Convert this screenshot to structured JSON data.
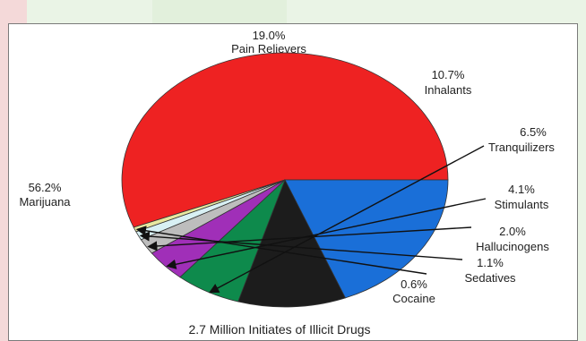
{
  "chart_data": {
    "type": "pie",
    "title": "2.7 Million Initiates of Illicit Drugs",
    "slices": [
      {
        "label": "Marijuana",
        "value": 56.2,
        "value_label": "56.2%",
        "color": "#ee2222"
      },
      {
        "label": "Pain Relievers",
        "value": 19.0,
        "value_label": "19.0%",
        "color": "#1a6fd8"
      },
      {
        "label": "Inhalants",
        "value": 10.7,
        "value_label": "10.7%",
        "color": "#1c1c1c"
      },
      {
        "label": "Tranquilizers",
        "value": 6.5,
        "value_label": "6.5%",
        "color": "#0e8a4c"
      },
      {
        "label": "Stimulants",
        "value": 4.1,
        "value_label": "4.1%",
        "color": "#a02fb8"
      },
      {
        "label": "Hallucinogens",
        "value": 2.0,
        "value_label": "2.0%",
        "color": "#bdbdbd"
      },
      {
        "label": "Sedatives",
        "value": 1.1,
        "value_label": "1.1%",
        "color": "#d8f0f4"
      },
      {
        "label": "Cocaine",
        "value": 0.6,
        "value_label": "0.6%",
        "color": "#e8e8a0"
      }
    ]
  }
}
